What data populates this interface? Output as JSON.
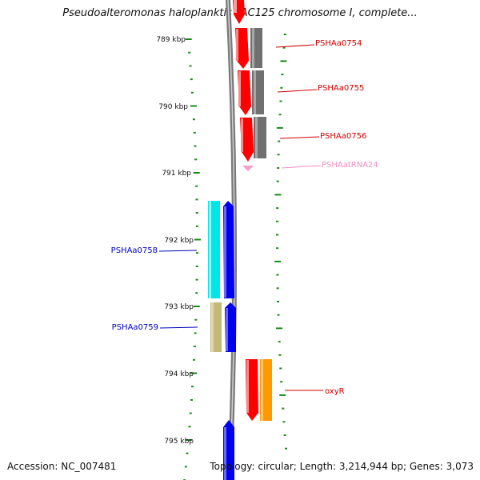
{
  "title": "Pseudoalteromonas haloplanktis TAC125 chromosome I, complete...",
  "footer": {
    "accession": "Accession: NC_007481",
    "summary": "Topology: circular; Length: 3,214,944 bp; Genes: 3,073"
  },
  "colors": {
    "scale_green": "#1a8a1a",
    "backbone": "#7a7a7a",
    "red_label": "#cc0000",
    "blue_label": "#0000bb",
    "pink_label": "#f090c0",
    "gene_red": "#ff0000",
    "gene_gray": "#707070",
    "gene_blue": "#0000ee",
    "gene_cyan": "#00e5e5",
    "gene_khaki": "#c4b878",
    "gene_orange": "#ff9900",
    "gene_pink": "#f4a0c8"
  },
  "scale": {
    "unit": "kbp",
    "labels": [
      {
        "kbp": 789,
        "text": "789 kbp"
      },
      {
        "kbp": 790,
        "text": "790 kbp"
      },
      {
        "kbp": 791,
        "text": "791 kbp"
      },
      {
        "kbp": 792,
        "text": "792 kbp"
      },
      {
        "kbp": 793,
        "text": "793 kbp"
      },
      {
        "kbp": 794,
        "text": "794 kbp"
      },
      {
        "kbp": 795,
        "text": "795 kbp"
      }
    ]
  },
  "genes": [
    {
      "id": "PSHAa0754",
      "label": "PSHAa0754",
      "side": "right",
      "label_color": "#cc0000"
    },
    {
      "id": "PSHAa0755",
      "label": "PSHAa0755",
      "side": "right",
      "label_color": "#cc0000"
    },
    {
      "id": "PSHAa0756",
      "label": "PSHAa0756",
      "side": "right",
      "label_color": "#cc0000"
    },
    {
      "id": "PSHAatRNA24",
      "label": "PSHAatRNA24",
      "side": "right",
      "label_color": "#f090c0"
    },
    {
      "id": "PSHAa0758",
      "label": "PSHAa0758",
      "side": "left",
      "label_color": "#0000bb"
    },
    {
      "id": "PSHAa0759",
      "label": "PSHAa0759",
      "side": "left",
      "label_color": "#0000bb"
    },
    {
      "id": "oxyR",
      "label": "oxyR",
      "side": "right",
      "label_color": "#cc0000"
    }
  ]
}
